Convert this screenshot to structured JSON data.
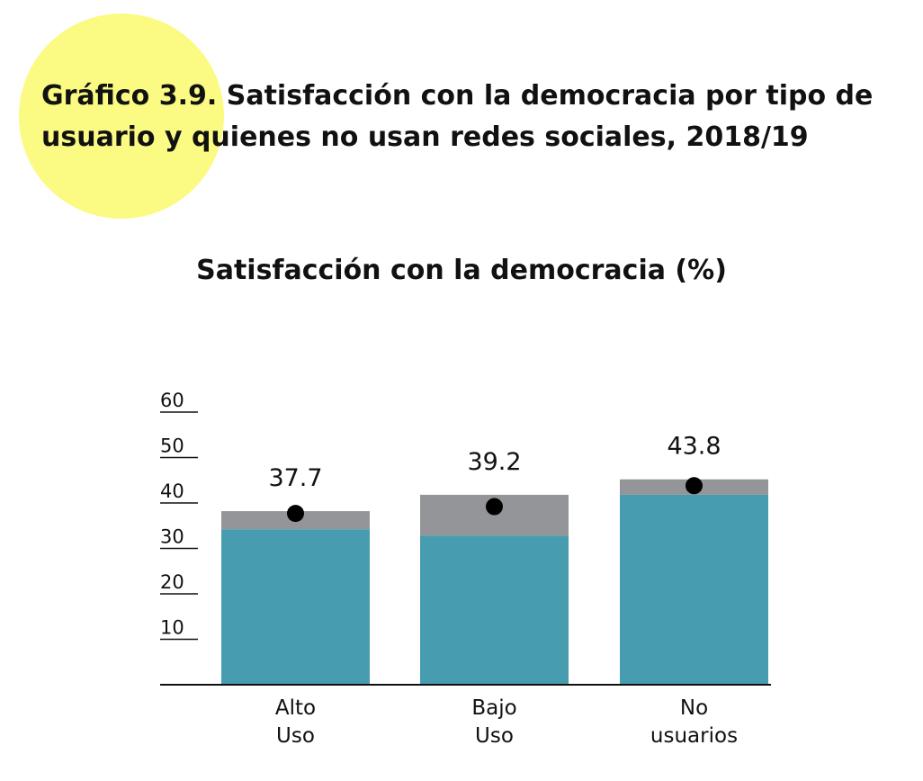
{
  "figure": {
    "number": "Gráfico 3.9.",
    "title": "Satisfacción con la democracia por tipo de usuario y quienes no usan redes sociales, 2018/19"
  },
  "colors": {
    "bar_fill": "#489caf",
    "interval_fill": "#939598",
    "point": "#000000",
    "highlight_circle": "#fbfa82"
  },
  "chart_data": {
    "type": "bar",
    "title": "Satisfacción con la democracia (%)",
    "xlabel": "",
    "ylabel": "",
    "ylim": [
      0,
      60
    ],
    "yticks": [
      10,
      20,
      30,
      40,
      50,
      60
    ],
    "categories": [
      {
        "line1": "Alto",
        "line2": "Uso"
      },
      {
        "line1": "Bajo",
        "line2": "Uso"
      },
      {
        "line1": "No",
        "line2": "usuarios"
      }
    ],
    "values": [
      37.7,
      39.2,
      43.8
    ],
    "value_labels": [
      "37.7",
      "39.2",
      "43.8"
    ],
    "interval_low": [
      34.2,
      32.8,
      41.8
    ],
    "interval_high": [
      38.2,
      41.8,
      45.2
    ],
    "grid": false,
    "legend": "none"
  }
}
